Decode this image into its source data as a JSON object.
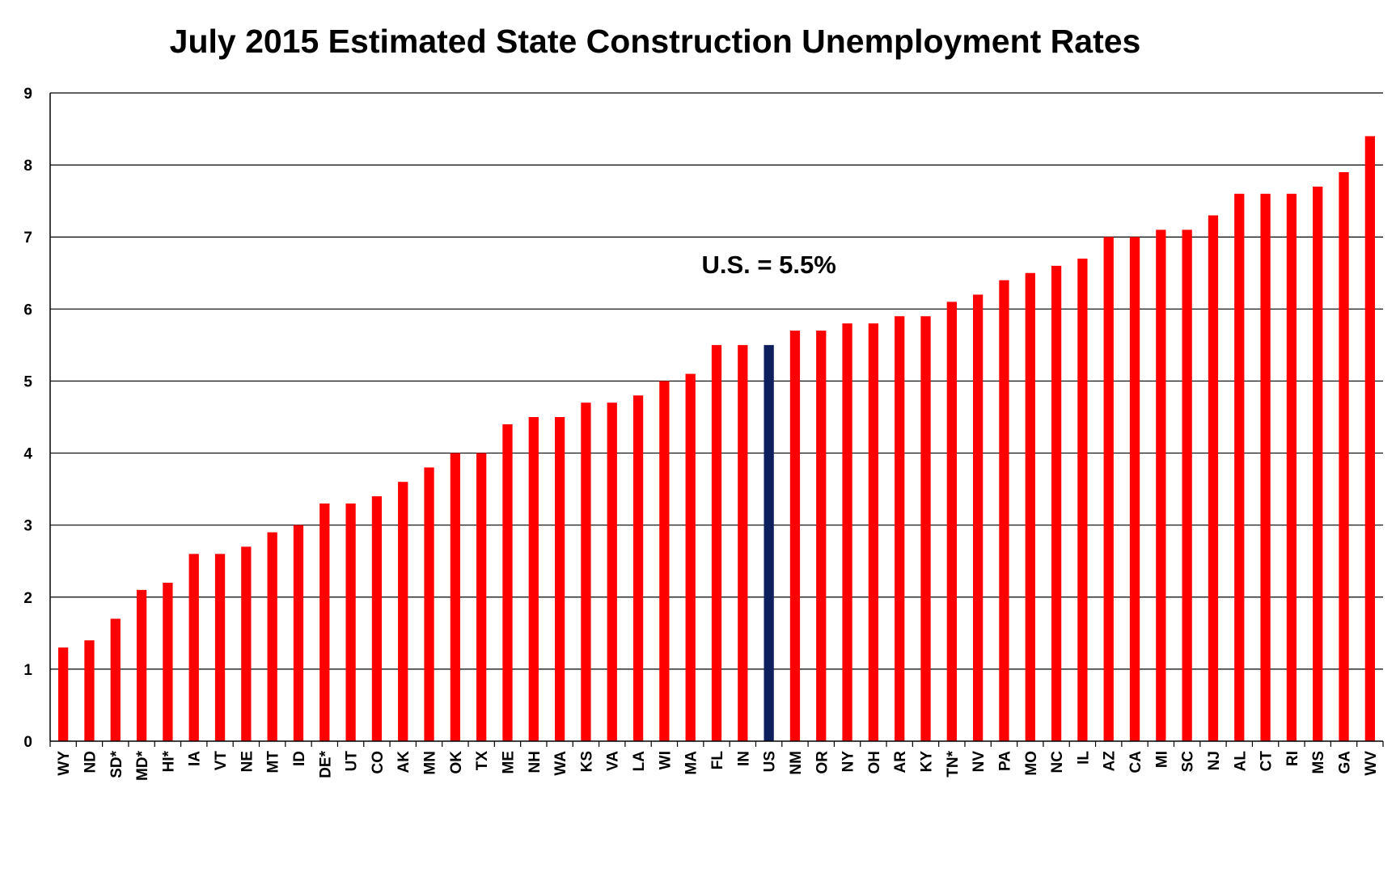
{
  "chart_data": {
    "type": "bar",
    "title": "July 2015 Estimated State Construction Unemployment Rates",
    "xlabel": "",
    "ylabel": "",
    "ylim": [
      0,
      9
    ],
    "yticks": [
      0,
      1,
      2,
      3,
      4,
      5,
      6,
      7,
      8,
      9
    ],
    "grid": true,
    "categories": [
      "WY",
      "ND",
      "SD*",
      "MD*",
      "HI*",
      "IA",
      "VT",
      "NE",
      "MT",
      "ID",
      "DE*",
      "UT",
      "CO",
      "AK",
      "MN",
      "OK",
      "TX",
      "ME",
      "NH",
      "WA",
      "KS",
      "VA",
      "LA",
      "WI",
      "MA",
      "FL",
      "IN",
      "US",
      "NM",
      "OR",
      "NY",
      "OH",
      "AR",
      "KY",
      "TN*",
      "NV",
      "PA",
      "MO",
      "NC",
      "IL",
      "AZ",
      "CA",
      "MI",
      "SC",
      "NJ",
      "AL",
      "CT",
      "RI",
      "MS",
      "GA",
      "WV"
    ],
    "values": [
      1.3,
      1.4,
      1.7,
      2.1,
      2.2,
      2.6,
      2.6,
      2.7,
      2.9,
      3.0,
      3.3,
      3.3,
      3.4,
      3.6,
      3.8,
      4.0,
      4.0,
      4.4,
      4.5,
      4.5,
      4.7,
      4.7,
      4.8,
      5.0,
      5.1,
      5.5,
      5.5,
      5.5,
      5.7,
      5.7,
      5.8,
      5.8,
      5.9,
      5.9,
      6.1,
      6.2,
      6.4,
      6.5,
      6.6,
      6.7,
      7.0,
      7.0,
      7.1,
      7.1,
      7.3,
      7.6,
      7.6,
      7.6,
      7.7,
      7.9,
      8.4
    ],
    "highlight_category": "US",
    "colors": {
      "bar": "#ff0000",
      "highlight": "#0d1f5c",
      "grid": "#000000"
    },
    "annotation": {
      "text": "U.S. = 5.5%",
      "y": 6.5
    }
  }
}
